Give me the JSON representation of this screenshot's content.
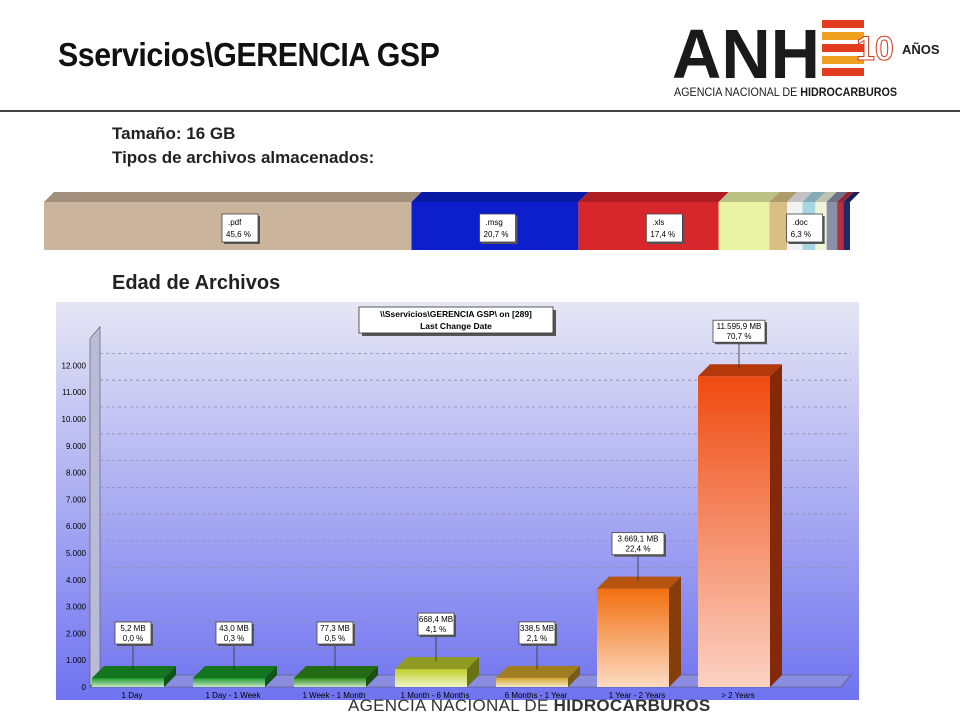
{
  "header": {
    "title": "Sservicios\\GERENCIA GSP",
    "logo": {
      "letters": "ANH",
      "badge": "10",
      "badge_suffix": "AÑOS",
      "tagline_a": "AGENCIA NACIONAL DE ",
      "tagline_b": "HIDROCARBUROS"
    }
  },
  "info": {
    "size_line": "Tamaño: 16 GB",
    "types_line": "Tipos de archivos almacenados:"
  },
  "section_title": "Edad de Archivos",
  "footer": {
    "text_a": "AGENCIA NACIONAL DE ",
    "text_b": "HIDROCARBUROS"
  },
  "colors": {
    "brand": "#1a1a1a",
    "accent": "#e23b1e"
  },
  "chart_data": [
    {
      "type": "bar",
      "orientation": "stacked-horizontal",
      "categories": [
        ".pdf",
        ".msg",
        ".xls",
        ".doc",
        "",
        "",
        "",
        "",
        "",
        "",
        ""
      ],
      "values": [
        45.6,
        20.7,
        17.4,
        6.3,
        2.2,
        1.9,
        1.6,
        1.4,
        1.3,
        0.8,
        0.8
      ],
      "labels": [
        ".pdf\n45,6 %",
        ".msg\n20,7 %",
        ".xls\n17,4 %",
        ".doc\n6,3 %",
        "",
        "",
        "",
        "",
        "",
        "",
        ""
      ],
      "colors": [
        "#cbb49c",
        "#0d1fcc",
        "#d8262d",
        "#e9f3a4",
        "#d9bf84",
        "#f2f2f2",
        "#a7d5e4",
        "#eef5d8",
        "#8b8fa8",
        "#b7313d",
        "#1d2a6e"
      ]
    },
    {
      "type": "bar",
      "title": "\\\\Sservicios\\GERENCIA GSP\\  on  [289]",
      "subtitle": "Last Change Date",
      "categories": [
        "1 Day",
        "1 Day - 1 Week",
        "1 Week - 1 Month",
        "1 Month - 6 Months",
        "6 Months - 1 Year",
        "1 Year - 2 Years",
        "> 2 Years"
      ],
      "values": [
        5.2,
        43.0,
        77.3,
        668.4,
        338.5,
        3669.1,
        11595.9
      ],
      "labels": [
        [
          "5,2 MB",
          "0,0 %"
        ],
        [
          "43,0 MB",
          "0,3 %"
        ],
        [
          "77,3 MB",
          "0,5 %"
        ],
        [
          "668,4 MB",
          "4,1 %"
        ],
        [
          "338,5 MB",
          "2,1 %"
        ],
        [
          "3.669,1 MB",
          "22,4 %"
        ],
        [
          "11.595,9 MB",
          "70,7 %"
        ]
      ],
      "colors": [
        "#1c9a2a",
        "#1c9a2a",
        "#2f8f1c",
        "#bfcf2a",
        "#d5a72a",
        "#f26f10",
        "#ef4a10"
      ],
      "yticks": [
        "0",
        "1.000",
        "2.000",
        "3.000",
        "4.000",
        "5.000",
        "6.000",
        "7.000",
        "8.000",
        "9.000",
        "10.000",
        "11.000",
        "12.000"
      ],
      "ylim": [
        0,
        13000
      ],
      "grid": true,
      "legend": "none"
    }
  ]
}
